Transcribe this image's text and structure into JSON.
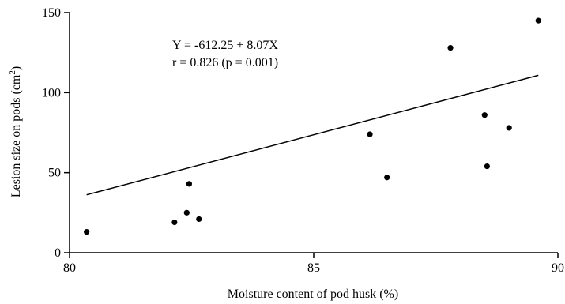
{
  "chart_data": {
    "type": "scatter",
    "title": "",
    "xlabel": "Moisture content of pod husk (%)",
    "ylabel_main": "Lesion size on pods (cm",
    "ylabel_sup": "2",
    "ylabel_end": ")",
    "xlim": [
      80,
      90
    ],
    "ylim": [
      0,
      150
    ],
    "xticks": [
      80,
      85,
      90
    ],
    "yticks": [
      0,
      50,
      100,
      150
    ],
    "xtick_labels": [
      "80",
      "85",
      "90"
    ],
    "ytick_labels": [
      "0",
      "50",
      "100",
      "150"
    ],
    "grid": false,
    "series": [
      {
        "points": [
          {
            "x": 80.35,
            "y": 13
          },
          {
            "x": 82.15,
            "y": 19
          },
          {
            "x": 82.4,
            "y": 25
          },
          {
            "x": 82.45,
            "y": 43
          },
          {
            "x": 82.65,
            "y": 21
          },
          {
            "x": 86.15,
            "y": 74
          },
          {
            "x": 86.5,
            "y": 47
          },
          {
            "x": 87.8,
            "y": 128
          },
          {
            "x": 88.5,
            "y": 86
          },
          {
            "x": 88.55,
            "y": 54
          },
          {
            "x": 89.0,
            "y": 78
          },
          {
            "x": 89.6,
            "y": 145
          }
        ],
        "color": "#000000"
      }
    ],
    "trendline": {
      "intercept": -612.25,
      "slope": 8.07,
      "x_start": 80.35,
      "x_end": 89.6
    },
    "annotations": [
      "Y = -612.25 + 8.07X",
      "r = 0.826 (p = 0.001)"
    ]
  }
}
